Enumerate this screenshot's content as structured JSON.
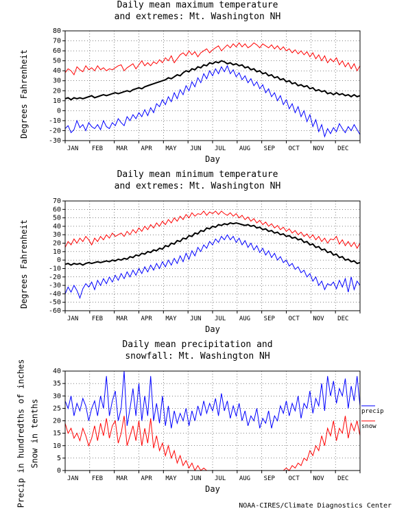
{
  "footer": "NOAA-CIRES/Climate Diagnostics Center",
  "months": [
    "JAN",
    "FEB",
    "MAR",
    "APR",
    "MAY",
    "JUN",
    "JUL",
    "AUG",
    "SEP",
    "OCT",
    "NOV",
    "DEC"
  ],
  "chart1": {
    "title_l1": "Daily mean maximum temperature",
    "title_l2": "and extremes: Mt. Washington NH",
    "ylabel": "Degrees Fahrenheit",
    "xlabel": "Day",
    "ylim": [
      -30,
      80
    ],
    "ytick_step": 10,
    "background": "#ffffff",
    "grid_color": "#000000",
    "max_color": "#ff0000",
    "mean_color": "#000000",
    "min_color": "#0000ff",
    "max_series": [
      38,
      42,
      40,
      36,
      44,
      41,
      39,
      45,
      41,
      43,
      40,
      45,
      41,
      43,
      40,
      42,
      41,
      43,
      45,
      46,
      40,
      43,
      45,
      47,
      42,
      46,
      50,
      45,
      48,
      45,
      49,
      47,
      51,
      48,
      53,
      50,
      55,
      48,
      52,
      56,
      58,
      55,
      60,
      56,
      59,
      54,
      58,
      60,
      62,
      58,
      61,
      63,
      65,
      60,
      63,
      66,
      63,
      67,
      64,
      68,
      64,
      67,
      63,
      65,
      68,
      66,
      63,
      67,
      65,
      63,
      66,
      62,
      65,
      61,
      64,
      60,
      62,
      58,
      61,
      57,
      60,
      56,
      59,
      54,
      58,
      52,
      56,
      50,
      55,
      48,
      52,
      49,
      53,
      46,
      50,
      44,
      48,
      42,
      47,
      40,
      45
    ],
    "min_series": [
      -18,
      -15,
      -22,
      -19,
      -10,
      -17,
      -14,
      -20,
      -12,
      -16,
      -18,
      -14,
      -19,
      -10,
      -16,
      -18,
      -12,
      -15,
      -8,
      -12,
      -15,
      -6,
      -10,
      -4,
      -8,
      -2,
      -6,
      1,
      -5,
      3,
      -2,
      7,
      4,
      11,
      6,
      14,
      9,
      18,
      12,
      21,
      16,
      25,
      20,
      29,
      24,
      33,
      28,
      37,
      32,
      40,
      35,
      42,
      37,
      44,
      39,
      45,
      37,
      41,
      34,
      38,
      31,
      35,
      28,
      32,
      25,
      29,
      22,
      26,
      18,
      22,
      14,
      18,
      10,
      15,
      6,
      11,
      2,
      7,
      -2,
      4,
      -6,
      0,
      -11,
      -4,
      -16,
      -9,
      -21,
      -14,
      -26,
      -18,
      -23,
      -17,
      -21,
      -13,
      -18,
      -22,
      -16,
      -20,
      -14,
      -19,
      -24
    ],
    "mean_series": [
      12,
      13,
      11,
      13,
      12,
      13,
      12,
      13,
      14,
      15,
      13,
      14,
      15,
      16,
      15,
      16,
      17,
      18,
      17,
      18,
      19,
      20,
      19,
      21,
      22,
      23,
      22,
      24,
      25,
      26,
      27,
      28,
      29,
      30,
      31,
      33,
      32,
      34,
      36,
      35,
      38,
      40,
      39,
      42,
      41,
      44,
      43,
      46,
      45,
      48,
      47,
      49,
      48,
      50,
      49,
      47,
      48,
      46,
      47,
      45,
      46,
      43,
      44,
      41,
      42,
      39,
      40,
      37,
      38,
      35,
      36,
      33,
      34,
      31,
      32,
      29,
      30,
      27,
      28,
      25,
      26,
      24,
      25,
      22,
      23,
      20,
      21,
      19,
      20,
      17,
      18,
      16,
      18,
      16,
      17,
      15,
      16,
      14,
      16,
      14,
      15
    ]
  },
  "chart2": {
    "title_l1": "Daily mean minimum temperature",
    "title_l2": "and extremes: Mt. Washington NH",
    "ylabel": "Degrees Fahrenheit",
    "xlabel": "Day",
    "ylim": [
      -60,
      70
    ],
    "ytick_step": 10,
    "background": "#ffffff",
    "grid_color": "#000000",
    "max_color": "#ff0000",
    "mean_color": "#000000",
    "min_color": "#0000ff",
    "max_series": [
      15,
      22,
      18,
      25,
      20,
      26,
      22,
      28,
      24,
      18,
      26,
      22,
      28,
      24,
      30,
      26,
      32,
      28,
      30,
      32,
      28,
      34,
      30,
      36,
      32,
      38,
      34,
      40,
      36,
      42,
      38,
      44,
      40,
      46,
      42,
      48,
      44,
      50,
      46,
      52,
      48,
      54,
      50,
      56,
      52,
      55,
      54,
      58,
      53,
      57,
      55,
      58,
      54,
      58,
      55,
      53,
      56,
      52,
      55,
      50,
      53,
      48,
      51,
      46,
      49,
      44,
      47,
      42,
      45,
      40,
      43,
      38,
      41,
      36,
      39,
      34,
      37,
      32,
      35,
      30,
      33,
      28,
      31,
      26,
      30,
      24,
      28,
      22,
      26,
      20,
      25,
      24,
      28,
      19,
      24,
      17,
      22,
      16,
      21,
      14,
      20
    ],
    "min_series": [
      -40,
      -32,
      -38,
      -30,
      -36,
      -45,
      -34,
      -28,
      -32,
      -26,
      -35,
      -24,
      -30,
      -22,
      -28,
      -20,
      -26,
      -18,
      -24,
      -16,
      -22,
      -14,
      -20,
      -12,
      -18,
      -10,
      -16,
      -8,
      -14,
      -6,
      -12,
      -4,
      -10,
      -2,
      -8,
      0,
      -6,
      2,
      -4,
      5,
      -2,
      8,
      1,
      11,
      5,
      15,
      10,
      18,
      14,
      22,
      18,
      25,
      21,
      28,
      24,
      30,
      24,
      28,
      21,
      26,
      18,
      23,
      15,
      20,
      12,
      17,
      9,
      14,
      6,
      11,
      3,
      8,
      0,
      4,
      -3,
      0,
      -7,
      -4,
      -11,
      -8,
      -15,
      -12,
      -20,
      -16,
      -25,
      -20,
      -30,
      -25,
      -35,
      -28,
      -30,
      -26,
      -34,
      -24,
      -32,
      -22,
      -38,
      -20,
      -35,
      -25,
      -30
    ],
    "mean_series": [
      -5,
      -4,
      -6,
      -4,
      -5,
      -4,
      -6,
      -4,
      -3,
      -4,
      -3,
      -2,
      -3,
      -2,
      -1,
      -2,
      0,
      -1,
      1,
      0,
      2,
      1,
      4,
      3,
      6,
      5,
      8,
      7,
      10,
      9,
      12,
      11,
      14,
      13,
      17,
      16,
      20,
      19,
      23,
      22,
      26,
      25,
      29,
      28,
      32,
      31,
      35,
      34,
      38,
      37,
      40,
      39,
      42,
      41,
      43,
      42,
      44,
      43,
      44,
      43,
      42,
      41,
      42,
      40,
      41,
      38,
      39,
      36,
      37,
      34,
      35,
      32,
      33,
      30,
      31,
      28,
      29,
      26,
      27,
      24,
      25,
      21,
      22,
      18,
      19,
      15,
      16,
      12,
      13,
      9,
      10,
      6,
      7,
      3,
      4,
      0,
      1,
      -2,
      -1,
      -4,
      -3
    ]
  },
  "chart3": {
    "title_l1": "Daily mean precipitation and",
    "title_l2": "snowfall: Mt. Washington NH",
    "ylabel_l1": "Precip in hundredths of inches",
    "ylabel_l2": "Snow in tenths",
    "xlabel": "Day",
    "ylim": [
      0,
      40
    ],
    "ytick_step": 5,
    "background": "#ffffff",
    "grid_color": "#000000",
    "precip_color": "#0000ff",
    "snow_color": "#ff0000",
    "legend_precip": "precip",
    "legend_snow": "snow",
    "precip_series": [
      28,
      25,
      30,
      22,
      27,
      24,
      29,
      26,
      20,
      25,
      28,
      22,
      30,
      25,
      38,
      22,
      28,
      32,
      20,
      25,
      40,
      18,
      25,
      33,
      22,
      35,
      20,
      30,
      22,
      38,
      20,
      27,
      19,
      30,
      18,
      26,
      17,
      24,
      19,
      23,
      20,
      25,
      18,
      24,
      20,
      26,
      22,
      28,
      23,
      27,
      24,
      29,
      22,
      31,
      24,
      28,
      21,
      26,
      22,
      27,
      20,
      24,
      18,
      22,
      20,
      25,
      17,
      21,
      19,
      24,
      17,
      22,
      20,
      26,
      23,
      28,
      22,
      27,
      24,
      30,
      21,
      27,
      25,
      32,
      23,
      29,
      26,
      35,
      24,
      38,
      30,
      36,
      27,
      33,
      30,
      37,
      25,
      34,
      28,
      38,
      26
    ],
    "snow_series": [
      19,
      15,
      17,
      13,
      15,
      12,
      17,
      14,
      10,
      13,
      18,
      12,
      19,
      14,
      21,
      13,
      18,
      20,
      11,
      15,
      22,
      10,
      14,
      18,
      12,
      20,
      10,
      17,
      11,
      21,
      9,
      14,
      8,
      11,
      6,
      10,
      5,
      8,
      3,
      6,
      2,
      4,
      1,
      3,
      0,
      2,
      0,
      1,
      0,
      0,
      0,
      0,
      0,
      0,
      0,
      0,
      0,
      0,
      0,
      0,
      0,
      0,
      0,
      0,
      0,
      0,
      0,
      0,
      0,
      0,
      0,
      0,
      0,
      0,
      0,
      1,
      0,
      2,
      1,
      3,
      2,
      5,
      4,
      8,
      6,
      10,
      8,
      14,
      10,
      17,
      14,
      20,
      12,
      17,
      15,
      22,
      13,
      19,
      16,
      20,
      14
    ]
  }
}
